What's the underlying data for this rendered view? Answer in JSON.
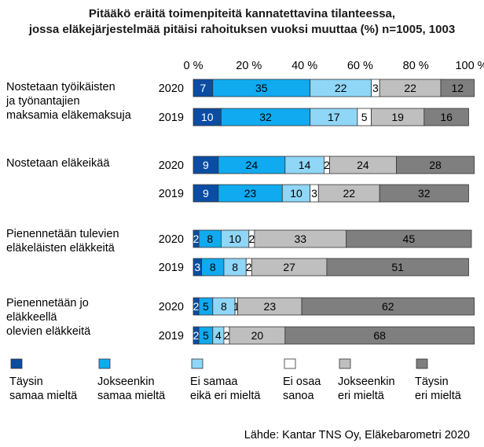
{
  "chart_data": {
    "type": "bar",
    "orientation": "horizontal",
    "stacked": true,
    "title_lines": [
      "Pitääkö eräitä toimenpiteitä kannatettavina tilanteessa,",
      "jossa eläkejärjestelmää pitäisi rahoituksen vuoksi muuttaa (%) n=1005, 1003"
    ],
    "xlim": [
      0,
      100
    ],
    "x_ticks": [
      "0 %",
      "20 %",
      "40 %",
      "60 %",
      "80 %",
      "100 %"
    ],
    "legend_position": "bottom",
    "series": [
      {
        "name": "Täysin samaa mieltä",
        "legend_lines": [
          "Täysin",
          "samaa mieltä"
        ],
        "color": "#0a4da3",
        "text_color": "#ffffff"
      },
      {
        "name": "Jokseenkin samaa mieltä",
        "legend_lines": [
          "Jokseenkin",
          "samaa mieltä"
        ],
        "color": "#10aaf0",
        "text_color": "#000000"
      },
      {
        "name": "Ei samaa eikä eri mieltä",
        "legend_lines": [
          "Ei samaa",
          "eikä eri mieltä"
        ],
        "color": "#8fd6f7",
        "text_color": "#000000"
      },
      {
        "name": "Ei osaa sanoa",
        "legend_lines": [
          "Ei osaa",
          "sanoa"
        ],
        "color": "#ffffff",
        "text_color": "#000000"
      },
      {
        "name": "Jokseenkin eri mieltä",
        "legend_lines": [
          "Jokseenkin",
          "eri mieltä"
        ],
        "color": "#bfbfbf",
        "text_color": "#000000"
      },
      {
        "name": "Täysin eri mieltä",
        "legend_lines": [
          "Täysin",
          "eri mieltä"
        ],
        "color": "#7f7f7f",
        "text_color": "#000000"
      }
    ],
    "groups": [
      {
        "label_lines": [
          "Nostetaan työikäisten",
          "ja työnantajien",
          "maksamia eläkemaksuja"
        ],
        "rows": [
          {
            "year": "2020",
            "values": [
              7,
              35,
              22,
              3,
              22,
              12
            ]
          },
          {
            "year": "2019",
            "values": [
              10,
              32,
              17,
              5,
              19,
              16
            ]
          }
        ]
      },
      {
        "label_lines": [
          "Nostetaan eläkeikää"
        ],
        "rows": [
          {
            "year": "2020",
            "values": [
              9,
              24,
              14,
              2,
              24,
              28
            ]
          },
          {
            "year": "2019",
            "values": [
              9,
              23,
              10,
              3,
              22,
              32
            ]
          }
        ]
      },
      {
        "label_lines": [
          "Pienennetään tulevien",
          "eläkeläisten eläkkeitä"
        ],
        "rows": [
          {
            "year": "2020",
            "values": [
              2,
              8,
              10,
              2,
              33,
              45
            ]
          },
          {
            "year": "2019",
            "values": [
              3,
              8,
              8,
              2,
              27,
              51
            ]
          }
        ]
      },
      {
        "label_lines": [
          "Pienennetään jo",
          "eläkkeellä",
          "olevien eläkkeitä"
        ],
        "rows": [
          {
            "year": "2020",
            "values": [
              2,
              5,
              8,
              1,
              23,
              62
            ]
          },
          {
            "year": "2019",
            "values": [
              2,
              5,
              4,
              2,
              20,
              68
            ]
          }
        ]
      }
    ],
    "source": "Lähde: Kantar TNS Oy, Eläkebarometri 2020"
  }
}
